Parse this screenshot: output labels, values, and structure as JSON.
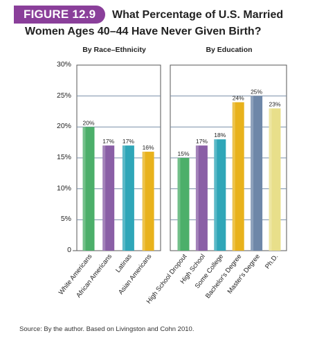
{
  "figure_label": "FIGURE 12.9",
  "title_line1": "What Percentage of U.S. Married",
  "title_line2": "Women Ages 40–44 Have Never Given Birth?",
  "source": "Source: By the author. Based on Livingston and Cohn 2010.",
  "y_ticks": [
    "30%",
    "25%",
    "20%",
    "15%",
    "10%",
    "5%",
    "0"
  ],
  "chart_data": [
    {
      "type": "bar",
      "title": "By Race–Ethnicity",
      "ylim": [
        0,
        30
      ],
      "grid": true,
      "categories": [
        "White Americans",
        "African Americans",
        "Latinas",
        "Asian Americans"
      ],
      "values": [
        20,
        17,
        17,
        16
      ],
      "data_labels": [
        "20%",
        "17%",
        "17%",
        "16%"
      ],
      "colors": [
        "#4caf6a",
        "#8a5fa6",
        "#2fa6b8",
        "#e8b21c"
      ]
    },
    {
      "type": "bar",
      "title": "By Education",
      "ylim": [
        0,
        30
      ],
      "grid": true,
      "categories": [
        "High School Dropout",
        "High School",
        "Some College",
        "Bachelor's Degree",
        "Master's Degree",
        "Ph.D."
      ],
      "values": [
        15,
        17,
        18,
        24,
        25,
        23
      ],
      "data_labels": [
        "15%",
        "17%",
        "18%",
        "24%",
        "25%",
        "23%"
      ],
      "colors": [
        "#4caf6a",
        "#8a5fa6",
        "#2fa6b8",
        "#e8b21c",
        "#6e87a8",
        "#e8df8a"
      ]
    }
  ]
}
